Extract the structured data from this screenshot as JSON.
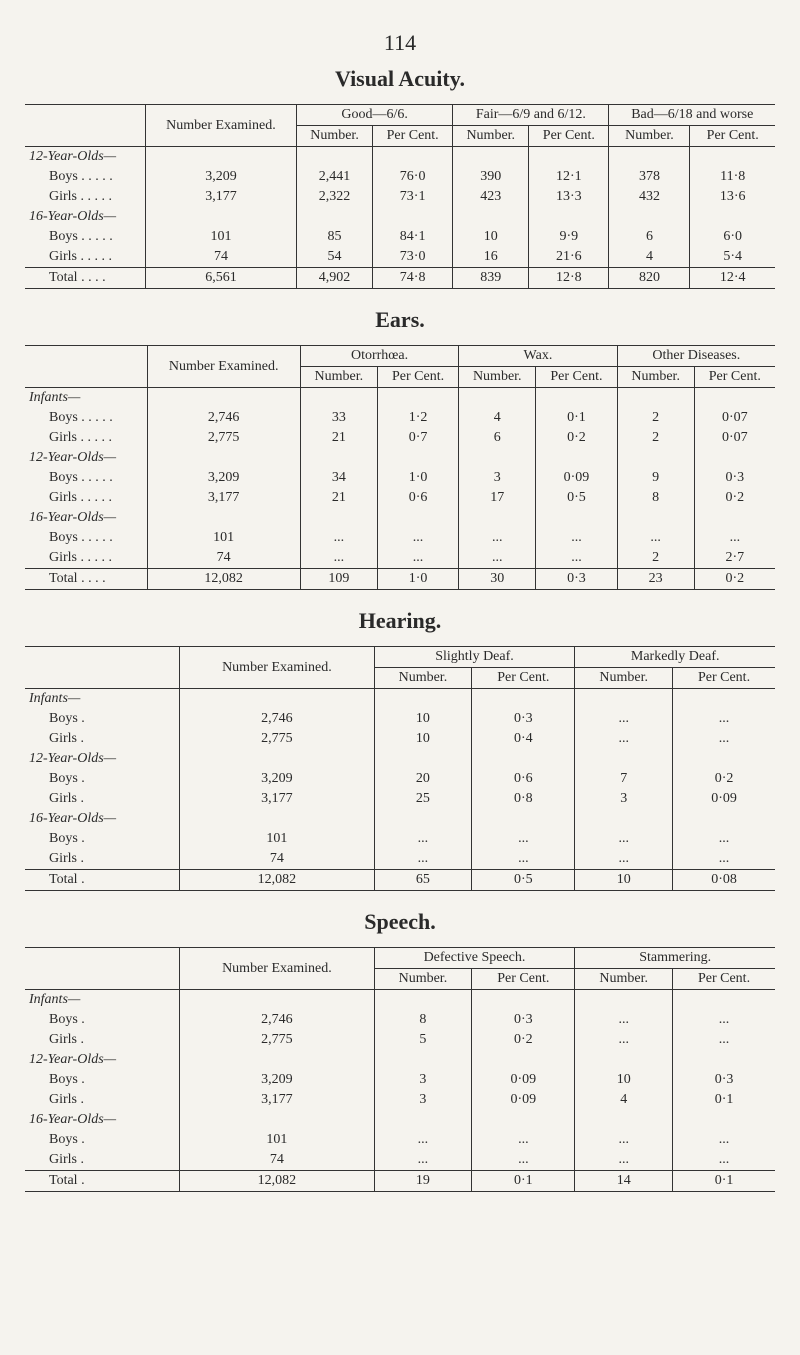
{
  "pageNumber": "114",
  "sections": {
    "visualAcuity": {
      "title": "Visual Acuity.",
      "colGroups": {
        "examined": "Number Examined.",
        "good": "Good—6/6.",
        "fair": "Fair—6/9 and 6/12.",
        "bad": "Bad—6/18 and worse"
      },
      "subCols": {
        "number": "Number.",
        "percent": "Per Cent."
      },
      "rows": {
        "g12": {
          "label": "12-Year-Olds—",
          "boys": [
            "3,209",
            "2,441",
            "76·0",
            "390",
            "12·1",
            "378",
            "11·8"
          ],
          "girls": [
            "3,177",
            "2,322",
            "73·1",
            "423",
            "13·3",
            "432",
            "13·6"
          ]
        },
        "g16": {
          "label": "16-Year-Olds—",
          "boys": [
            "101",
            "85",
            "84·1",
            "10",
            "9·9",
            "6",
            "6·0"
          ],
          "girls": [
            "74",
            "54",
            "73·0",
            "16",
            "21·6",
            "4",
            "5·4"
          ]
        },
        "total": [
          "6,561",
          "4,902",
          "74·8",
          "839",
          "12·8",
          "820",
          "12·4"
        ]
      }
    },
    "ears": {
      "title": "Ears.",
      "colGroups": {
        "examined": "Number Examined.",
        "otor": "Otorrhœa.",
        "wax": "Wax.",
        "other": "Other Diseases."
      },
      "subCols": {
        "number": "Number.",
        "percent": "Per Cent."
      },
      "rows": {
        "inf": {
          "label": "Infants—",
          "boys": [
            "2,746",
            "33",
            "1·2",
            "4",
            "0·1",
            "2",
            "0·07"
          ],
          "girls": [
            "2,775",
            "21",
            "0·7",
            "6",
            "0·2",
            "2",
            "0·07"
          ]
        },
        "g12": {
          "label": "12-Year-Olds—",
          "boys": [
            "3,209",
            "34",
            "1·0",
            "3",
            "0·09",
            "9",
            "0·3"
          ],
          "girls": [
            "3,177",
            "21",
            "0·6",
            "17",
            "0·5",
            "8",
            "0·2"
          ]
        },
        "g16": {
          "label": "16-Year-Olds—",
          "boys": [
            "101",
            "...",
            "...",
            "...",
            "...",
            "...",
            "..."
          ],
          "girls": [
            "74",
            "...",
            "...",
            "...",
            "...",
            "2",
            "2·7"
          ]
        },
        "total": [
          "12,082",
          "109",
          "1·0",
          "30",
          "0·3",
          "23",
          "0·2"
        ]
      }
    },
    "hearing": {
      "title": "Hearing.",
      "colGroups": {
        "examined": "Number Examined.",
        "slight": "Slightly Deaf.",
        "marked": "Markedly Deaf."
      },
      "subCols": {
        "number": "Number.",
        "percent": "Per Cent."
      },
      "rows": {
        "inf": {
          "label": "Infants—",
          "boys": [
            "2,746",
            "10",
            "0·3",
            "...",
            "..."
          ],
          "girls": [
            "2,775",
            "10",
            "0·4",
            "...",
            "..."
          ]
        },
        "g12": {
          "label": "12-Year-Olds—",
          "boys": [
            "3,209",
            "20",
            "0·6",
            "7",
            "0·2"
          ],
          "girls": [
            "3,177",
            "25",
            "0·8",
            "3",
            "0·09"
          ]
        },
        "g16": {
          "label": "16-Year-Olds—",
          "boys": [
            "101",
            "...",
            "...",
            "...",
            "..."
          ],
          "girls": [
            "74",
            "...",
            "...",
            "...",
            "..."
          ]
        },
        "total": [
          "12,082",
          "65",
          "0·5",
          "10",
          "0·08"
        ]
      }
    },
    "speech": {
      "title": "Speech.",
      "colGroups": {
        "examined": "Number Examined.",
        "defective": "Defective Speech.",
        "stammer": "Stammering."
      },
      "subCols": {
        "number": "Number.",
        "percent": "Per Cent."
      },
      "rows": {
        "inf": {
          "label": "Infants—",
          "boys": [
            "2,746",
            "8",
            "0·3",
            "...",
            "..."
          ],
          "girls": [
            "2,775",
            "5",
            "0·2",
            "...",
            "..."
          ]
        },
        "g12": {
          "label": "12-Year-Olds—",
          "boys": [
            "3,209",
            "3",
            "0·09",
            "10",
            "0·3"
          ],
          "girls": [
            "3,177",
            "3",
            "0·09",
            "4",
            "0·1"
          ]
        },
        "g16": {
          "label": "16-Year-Olds—",
          "boys": [
            "101",
            "...",
            "...",
            "...",
            "..."
          ],
          "girls": [
            "74",
            "...",
            "...",
            "...",
            "..."
          ]
        },
        "total": [
          "12,082",
          "19",
          "0·1",
          "14",
          "0·1"
        ]
      }
    }
  },
  "labels": {
    "boys": "Boys .",
    "girls": "Girls .",
    "boysDots": "Boys  .  .  .  .  .",
    "girlsDots": "Girls  .  .  .  .  .",
    "total": "Total  .",
    "totalDots": "Total  .  .  .  ."
  }
}
